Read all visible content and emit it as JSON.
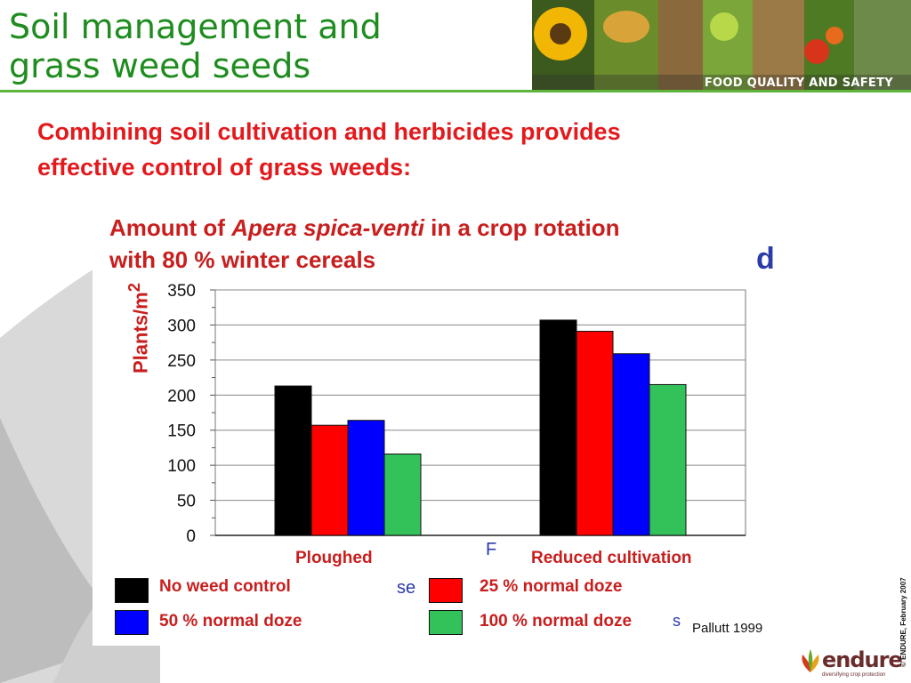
{
  "slide": {
    "title_line1": "Soil management and",
    "title_line2": "grass weed seeds",
    "banner_text": "FOOD QUALITY AND SAFETY",
    "subtitle_line1": "Combining soil cultivation and herbicides provides",
    "subtitle_line2": "effective control of grass weeds:",
    "source": "Pallutt 1999",
    "copyright": "© ENDURE, February 2007",
    "logo_name": "endure",
    "logo_tagline": "diversifying crop protection",
    "ghost_d": "d",
    "ghost_f": "F",
    "ghost_se": "se",
    "ghost_s": "s"
  },
  "colors": {
    "title_green": "#1e8c1e",
    "accent_red": "#e3191c",
    "series_black": "#000000",
    "series_red": "#ff0000",
    "series_blue": "#0000ff",
    "series_green": "#33c15a"
  },
  "chart_data": {
    "type": "bar",
    "title_prefix": "Amount of ",
    "title_italic": "Apera spica-venti",
    "title_suffix": " in a crop rotation",
    "title_line2": "with 80 % winter cereals",
    "ylabel": "Plants/m²",
    "ylim": [
      0,
      350
    ],
    "yticks": [
      "350",
      "300",
      "250",
      "200",
      "150",
      "100",
      "50",
      "0"
    ],
    "categories": [
      "Ploughed",
      "Reduced cultivation"
    ],
    "series": [
      {
        "name": "No weed control",
        "color": "#000000",
        "values": [
          213,
          307
        ]
      },
      {
        "name": "25 % normal doze",
        "color": "#ff0000",
        "values": [
          157,
          291
        ]
      },
      {
        "name": "50 % normal doze",
        "color": "#0000ff",
        "values": [
          164,
          259
        ]
      },
      {
        "name": "100 % normal doze",
        "color": "#33c15a",
        "values": [
          116,
          215
        ]
      }
    ],
    "grid": true,
    "legend": "bottom"
  }
}
